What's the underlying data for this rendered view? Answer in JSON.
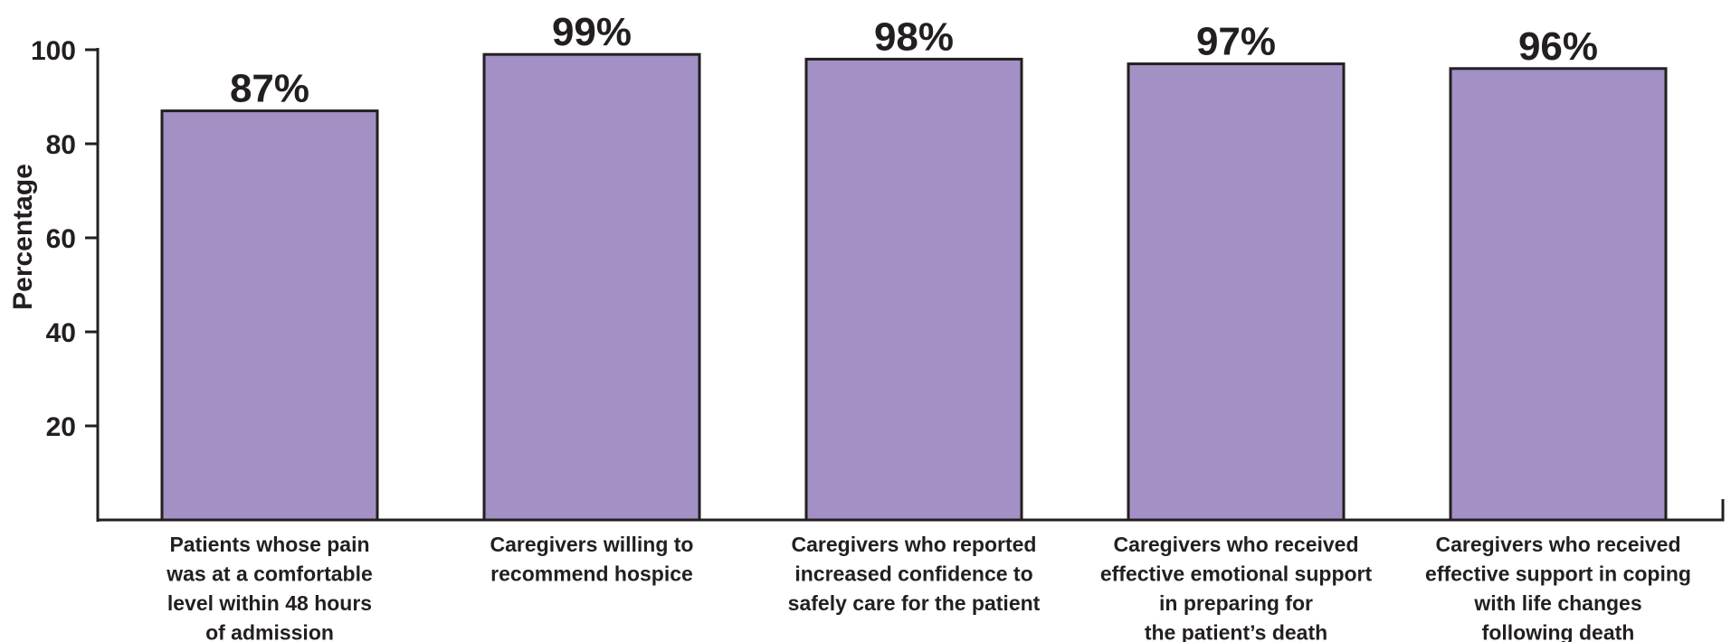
{
  "chart_data": {
    "type": "bar",
    "title": "",
    "xlabel": "",
    "ylabel": "Percentage",
    "ylim": [
      0,
      100
    ],
    "yticks": [
      20,
      40,
      60,
      80,
      100
    ],
    "grid": false,
    "categories": [
      [
        "Patients whose pain",
        "was at a comfortable",
        "level within 48 hours",
        "of admission"
      ],
      [
        "Caregivers willing to",
        "recommend hospice"
      ],
      [
        "Caregivers who reported",
        "increased confidence to",
        "safely care for the patient"
      ],
      [
        "Caregivers who received",
        "effective emotional support",
        "in preparing for",
        "the patient’s death"
      ],
      [
        "Caregivers who received",
        "effective support in coping",
        "with life changes",
        "following death"
      ]
    ],
    "values": [
      87,
      99,
      98,
      97,
      96
    ],
    "data_labels": [
      "87%",
      "99%",
      "98%",
      "97%",
      "96%"
    ],
    "colors": {
      "bar": "#a391c5",
      "bar_border": "#231f20",
      "axis": "#231f20",
      "text": "#231f20"
    }
  }
}
